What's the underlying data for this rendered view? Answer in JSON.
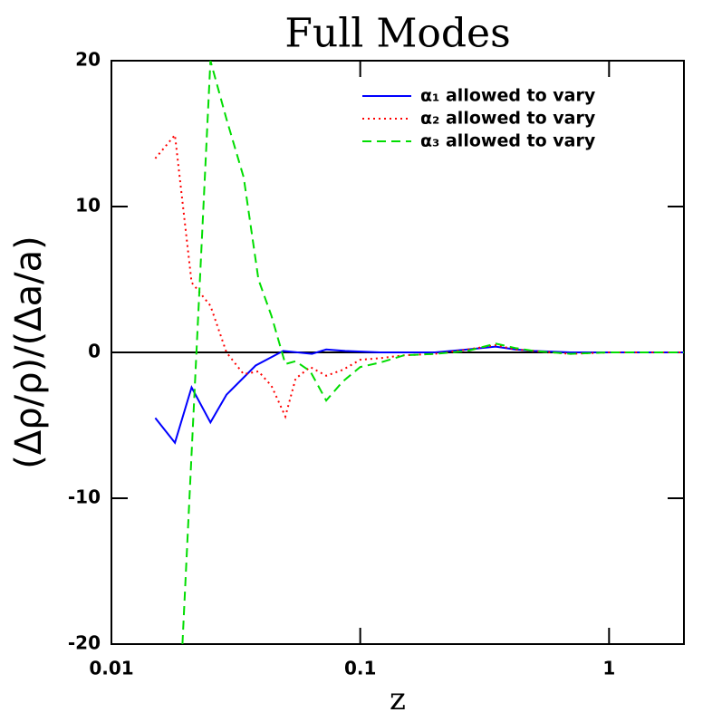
{
  "chart_data": {
    "type": "line",
    "title": "Full Modes",
    "xlabel": "z",
    "ylabel": "(Δρ/ρ)/(Δa/a)",
    "xscale": "log",
    "xlim": [
      0.01,
      2
    ],
    "xticks": [
      0.01,
      0.1,
      1
    ],
    "ylim": [
      -20,
      20
    ],
    "yticks": [
      -20,
      -10,
      0,
      10,
      20
    ],
    "reference_line": 0,
    "legend": "upper right",
    "series": [
      {
        "name": "α₁ allowed to vary",
        "color": "#0000ff",
        "style": "solid",
        "x": [
          0.015,
          0.018,
          0.021,
          0.025,
          0.029,
          0.038,
          0.049,
          0.064,
          0.073,
          0.087,
          0.12,
          0.2,
          0.27,
          0.35,
          0.42,
          0.5,
          0.7,
          1,
          2
        ],
        "values": [
          -4.5,
          -6.2,
          -2.4,
          -4.8,
          -2.9,
          -0.9,
          0.1,
          -0.1,
          0.2,
          0.1,
          0,
          0,
          0.2,
          0.4,
          0.2,
          0.1,
          0,
          0,
          0
        ]
      },
      {
        "name": "α₂ allowed to vary",
        "color": "#ff0000",
        "style": "dotted",
        "x": [
          0.015,
          0.018,
          0.021,
          0.025,
          0.029,
          0.034,
          0.039,
          0.044,
          0.05,
          0.055,
          0.063,
          0.073,
          0.085,
          0.1,
          0.12,
          0.15,
          0.2,
          0.27,
          0.35,
          0.42,
          0.5,
          0.7,
          1,
          2
        ],
        "values": [
          13.3,
          14.9,
          4.8,
          3.2,
          0,
          -1.5,
          -1.3,
          -2.3,
          -4.4,
          -1.8,
          -1.0,
          -1.6,
          -1.2,
          -0.5,
          -0.4,
          -0.2,
          -0.1,
          0.2,
          0.5,
          0.2,
          0.1,
          -0.1,
          0,
          0
        ]
      },
      {
        "name": "α₃ allowed to vary",
        "color": "#00dd00",
        "style": "dashed",
        "x": [
          0.0193,
          0.025,
          0.029,
          0.034,
          0.039,
          0.044,
          0.05,
          0.055,
          0.063,
          0.073,
          0.085,
          0.1,
          0.12,
          0.15,
          0.2,
          0.27,
          0.35,
          0.42,
          0.5,
          0.7,
          1,
          2
        ],
        "values": [
          -20,
          20,
          16,
          12,
          5,
          2.5,
          -0.8,
          -0.6,
          -1.3,
          -3.3,
          -2.0,
          -1.0,
          -0.7,
          -0.2,
          -0.1,
          0.1,
          0.6,
          0.3,
          0.1,
          -0.1,
          0,
          0
        ]
      }
    ]
  }
}
